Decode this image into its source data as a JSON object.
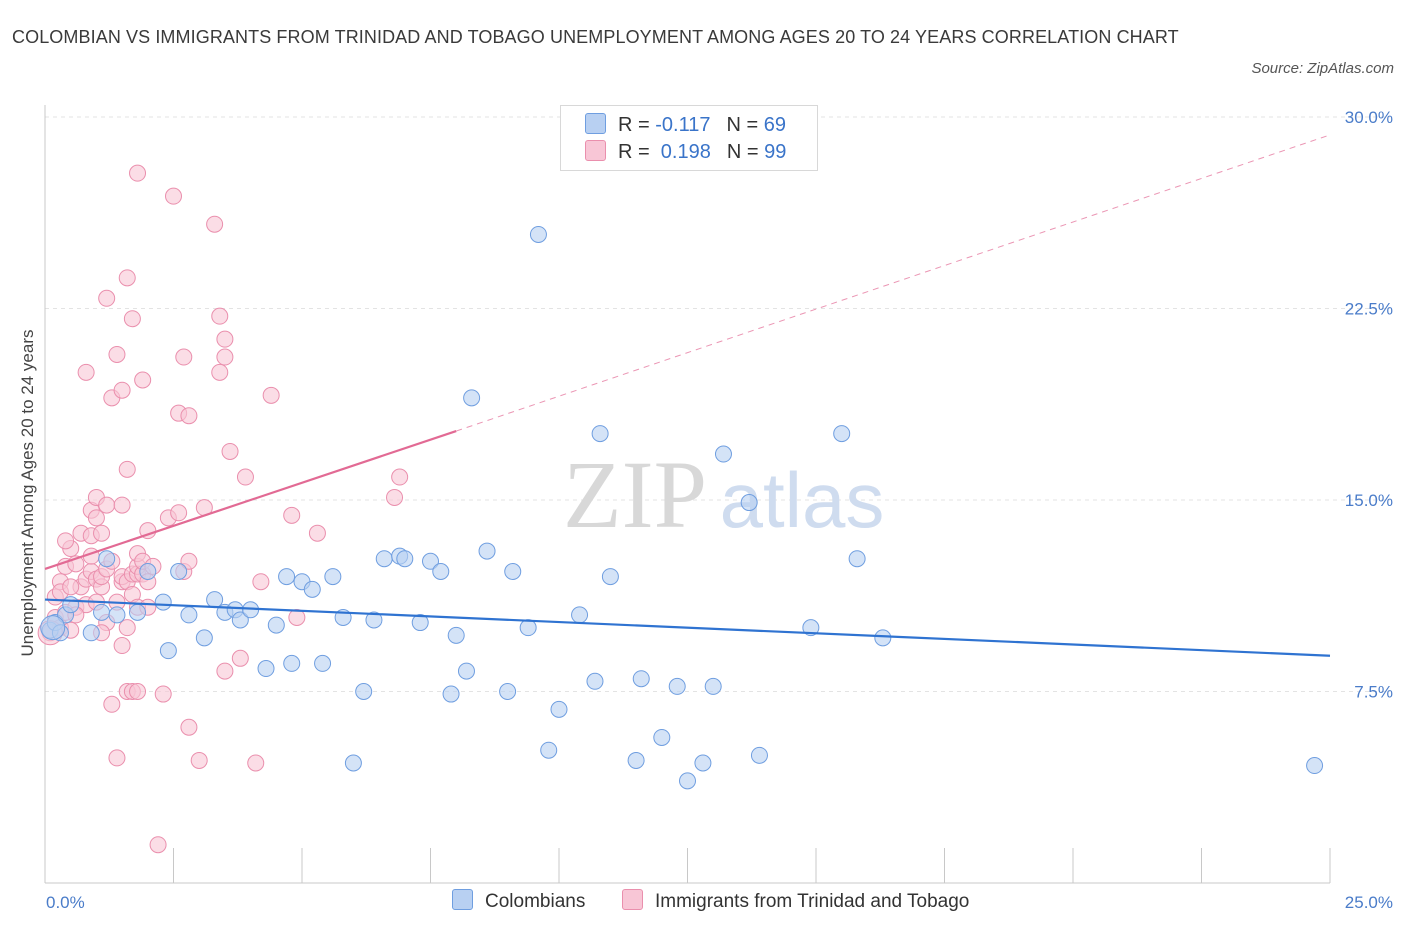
{
  "title": "COLOMBIAN VS IMMIGRANTS FROM TRINIDAD AND TOBAGO UNEMPLOYMENT AMONG AGES 20 TO 24 YEARS CORRELATION CHART",
  "source": "Source: ZipAtlas.com",
  "watermark": {
    "zip": "ZIP",
    "atlas": "atlas"
  },
  "legend": [
    {
      "r_label": "R = ",
      "r_value": "-0.117",
      "n_label": "N = ",
      "n_value": "69"
    },
    {
      "r_label": "R = ",
      "r_value": " 0.198",
      "n_label": "N = ",
      "n_value": "99"
    }
  ],
  "colors": {
    "blue_fill": "#b8d0f2",
    "blue_stroke": "#6f9ee0",
    "blue_line": "#2f73d1",
    "pink_fill": "#f8c6d6",
    "pink_stroke": "#ea8fad",
    "pink_line": "#e26a94",
    "tick_text": "#4a7cc9",
    "grid": "#e3e3e3"
  },
  "chart_data": {
    "type": "scatter",
    "xlabel": "",
    "ylabel": "Unemployment Among Ages 20 to 24 years",
    "xlim": [
      0,
      25
    ],
    "ylim": [
      0,
      30
    ],
    "x_tick_labels": [
      "0.0%",
      "25.0%"
    ],
    "y_ticks": [
      7.5,
      15.0,
      22.5,
      30.0
    ],
    "y_tick_labels": [
      "7.5%",
      "15.0%",
      "22.5%",
      "30.0%"
    ],
    "grid": true,
    "legend_placement": "top-center",
    "series": [
      {
        "name": "Colombians",
        "color": "#b8d0f2",
        "trend": {
          "x": [
            0,
            25
          ],
          "y": [
            11.1,
            8.9
          ],
          "style": "solid"
        },
        "points": [
          [
            0.1,
            9.9
          ],
          [
            0.2,
            10.2
          ],
          [
            0.3,
            9.8
          ],
          [
            0.4,
            10.5
          ],
          [
            0.5,
            10.9
          ],
          [
            0.9,
            9.8
          ],
          [
            1.1,
            10.6
          ],
          [
            1.2,
            12.7
          ],
          [
            1.4,
            10.5
          ],
          [
            1.8,
            10.6
          ],
          [
            2.0,
            12.2
          ],
          [
            2.3,
            11.0
          ],
          [
            2.4,
            9.1
          ],
          [
            2.6,
            12.2
          ],
          [
            2.8,
            10.5
          ],
          [
            3.1,
            9.6
          ],
          [
            3.3,
            11.1
          ],
          [
            3.5,
            10.6
          ],
          [
            3.7,
            10.7
          ],
          [
            3.8,
            10.3
          ],
          [
            4.0,
            10.7
          ],
          [
            4.3,
            8.4
          ],
          [
            4.5,
            10.1
          ],
          [
            4.7,
            12.0
          ],
          [
            4.8,
            8.6
          ],
          [
            5.0,
            11.8
          ],
          [
            5.2,
            11.5
          ],
          [
            5.4,
            8.6
          ],
          [
            5.6,
            12.0
          ],
          [
            5.8,
            10.4
          ],
          [
            6.0,
            4.7
          ],
          [
            6.2,
            7.5
          ],
          [
            6.4,
            10.3
          ],
          [
            6.6,
            12.7
          ],
          [
            6.9,
            12.8
          ],
          [
            7.0,
            12.7
          ],
          [
            7.3,
            10.2
          ],
          [
            7.5,
            12.6
          ],
          [
            7.7,
            12.2
          ],
          [
            7.9,
            7.4
          ],
          [
            8.0,
            9.7
          ],
          [
            8.2,
            8.3
          ],
          [
            8.3,
            19.0
          ],
          [
            8.6,
            13.0
          ],
          [
            9.0,
            7.5
          ],
          [
            9.1,
            12.2
          ],
          [
            9.4,
            10.0
          ],
          [
            9.6,
            25.4
          ],
          [
            9.8,
            5.2
          ],
          [
            10.0,
            6.8
          ],
          [
            10.4,
            10.5
          ],
          [
            10.7,
            7.9
          ],
          [
            10.8,
            17.6
          ],
          [
            11.0,
            12.0
          ],
          [
            11.5,
            4.8
          ],
          [
            11.6,
            8.0
          ],
          [
            12.0,
            5.7
          ],
          [
            12.3,
            7.7
          ],
          [
            12.5,
            4.0
          ],
          [
            12.8,
            4.7
          ],
          [
            13.0,
            7.7
          ],
          [
            13.2,
            16.8
          ],
          [
            13.7,
            14.9
          ],
          [
            13.9,
            5.0
          ],
          [
            14.9,
            10.0
          ],
          [
            15.5,
            17.6
          ],
          [
            15.8,
            12.7
          ],
          [
            16.3,
            9.6
          ],
          [
            24.7,
            4.6
          ]
        ]
      },
      {
        "name": "Immigrants from Trinidad and Tobago",
        "color": "#f8c6d6",
        "trend": {
          "x": [
            0,
            8.0
          ],
          "y": [
            12.3,
            17.7
          ],
          "style": "solid",
          "extended_x": [
            8.0,
            25
          ],
          "extended_y": [
            17.7,
            29.3
          ],
          "extended_style": "dashed"
        },
        "points": [
          [
            0.1,
            9.8
          ],
          [
            0.2,
            10.4
          ],
          [
            0.2,
            11.2
          ],
          [
            0.3,
            10.0
          ],
          [
            0.3,
            11.8
          ],
          [
            0.4,
            10.6
          ],
          [
            0.4,
            12.4
          ],
          [
            0.5,
            9.9
          ],
          [
            0.5,
            13.1
          ],
          [
            0.6,
            10.8
          ],
          [
            0.6,
            12.5
          ],
          [
            0.7,
            11.6
          ],
          [
            0.7,
            13.7
          ],
          [
            0.8,
            10.9
          ],
          [
            0.8,
            11.9
          ],
          [
            0.8,
            20.0
          ],
          [
            0.9,
            12.2
          ],
          [
            0.9,
            13.6
          ],
          [
            0.9,
            14.6
          ],
          [
            1.0,
            11.0
          ],
          [
            1.0,
            11.9
          ],
          [
            1.0,
            14.3
          ],
          [
            1.0,
            15.1
          ],
          [
            1.1,
            11.6
          ],
          [
            1.1,
            12.0
          ],
          [
            1.1,
            13.7
          ],
          [
            1.2,
            10.2
          ],
          [
            1.2,
            12.3
          ],
          [
            1.2,
            14.8
          ],
          [
            1.2,
            22.9
          ],
          [
            1.3,
            7.0
          ],
          [
            1.3,
            19.0
          ],
          [
            1.4,
            4.9
          ],
          [
            1.4,
            11.0
          ],
          [
            1.4,
            20.7
          ],
          [
            1.5,
            9.3
          ],
          [
            1.5,
            11.8
          ],
          [
            1.5,
            12.0
          ],
          [
            1.5,
            14.8
          ],
          [
            1.5,
            19.3
          ],
          [
            1.6,
            7.5
          ],
          [
            1.6,
            10.0
          ],
          [
            1.6,
            11.8
          ],
          [
            1.6,
            16.2
          ],
          [
            1.6,
            23.7
          ],
          [
            1.7,
            7.5
          ],
          [
            1.7,
            11.3
          ],
          [
            1.7,
            12.1
          ],
          [
            1.7,
            22.1
          ],
          [
            1.8,
            7.5
          ],
          [
            1.8,
            10.8
          ],
          [
            1.8,
            12.1
          ],
          [
            1.8,
            12.4
          ],
          [
            1.8,
            12.9
          ],
          [
            1.8,
            27.8
          ],
          [
            1.9,
            12.1
          ],
          [
            1.9,
            19.7
          ],
          [
            2.0,
            10.8
          ],
          [
            2.0,
            11.8
          ],
          [
            2.0,
            13.8
          ],
          [
            2.2,
            1.5
          ],
          [
            2.3,
            7.4
          ],
          [
            2.4,
            14.3
          ],
          [
            2.5,
            26.9
          ],
          [
            2.6,
            14.5
          ],
          [
            2.6,
            18.4
          ],
          [
            2.7,
            12.2
          ],
          [
            2.7,
            20.6
          ],
          [
            2.8,
            6.1
          ],
          [
            2.8,
            12.6
          ],
          [
            2.8,
            18.3
          ],
          [
            3.0,
            4.8
          ],
          [
            3.1,
            14.7
          ],
          [
            3.3,
            25.8
          ],
          [
            3.4,
            20.0
          ],
          [
            3.4,
            22.2
          ],
          [
            3.5,
            8.3
          ],
          [
            3.5,
            20.6
          ],
          [
            3.5,
            21.3
          ],
          [
            3.6,
            16.9
          ],
          [
            3.8,
            8.8
          ],
          [
            3.9,
            15.9
          ],
          [
            4.1,
            4.7
          ],
          [
            4.2,
            11.8
          ],
          [
            4.4,
            19.1
          ],
          [
            4.8,
            14.4
          ],
          [
            4.9,
            10.4
          ],
          [
            5.3,
            13.7
          ],
          [
            6.8,
            15.1
          ],
          [
            6.9,
            15.9
          ],
          [
            0.3,
            11.4
          ],
          [
            0.5,
            11.6
          ],
          [
            0.6,
            10.5
          ],
          [
            0.9,
            12.8
          ],
          [
            1.1,
            9.8
          ],
          [
            1.3,
            12.6
          ],
          [
            1.9,
            12.6
          ],
          [
            2.1,
            12.4
          ],
          [
            0.4,
            13.4
          ]
        ]
      }
    ]
  }
}
